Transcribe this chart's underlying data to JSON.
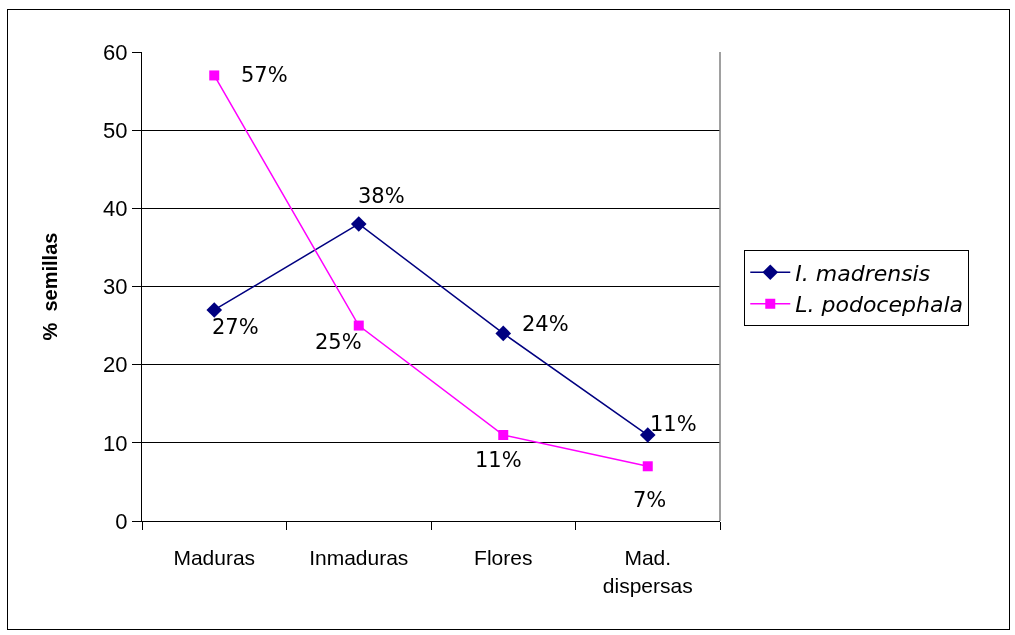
{
  "chart_data": {
    "type": "line",
    "ylabel": "%  semillas",
    "categories": [
      "Maduras",
      "Inmaduras",
      "Flores",
      "Mad. dispersas"
    ],
    "ylim": [
      0,
      60
    ],
    "yticks": [
      0,
      10,
      20,
      30,
      40,
      50,
      60
    ],
    "grid": "y",
    "legend": "right",
    "line_style": "solid",
    "series": [
      {
        "name": "I. madrensis",
        "color": "#000080",
        "marker": "diamond",
        "values": [
          27,
          38,
          24,
          11
        ],
        "value_labels": [
          "27%",
          "38%",
          "24%",
          "11%"
        ]
      },
      {
        "name": "L. podocephala",
        "color": "#ff00ff",
        "marker": "square",
        "values": [
          57,
          25,
          11,
          7
        ],
        "value_labels": [
          "57%",
          "25%",
          "11%",
          "7%"
        ]
      }
    ]
  }
}
